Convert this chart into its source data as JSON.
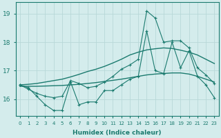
{
  "xlabel": "Humidex (Indice chaleur)",
  "x_values": [
    0,
    1,
    2,
    3,
    4,
    5,
    6,
    7,
    8,
    9,
    10,
    11,
    12,
    13,
    14,
    15,
    16,
    17,
    18,
    19,
    20,
    21,
    22,
    23
  ],
  "line_volatile": [
    16.5,
    16.4,
    16.1,
    15.8,
    15.6,
    15.6,
    16.6,
    15.8,
    15.9,
    15.9,
    16.3,
    16.3,
    16.5,
    16.7,
    16.8,
    18.4,
    17.0,
    16.9,
    18.0,
    17.1,
    17.7,
    16.8,
    16.5,
    16.05
  ],
  "line_upper": [
    16.5,
    16.35,
    16.2,
    16.1,
    16.05,
    16.1,
    16.65,
    16.55,
    16.4,
    16.45,
    16.6,
    16.8,
    17.05,
    17.2,
    17.4,
    19.1,
    18.85,
    18.0,
    18.05,
    18.05,
    17.8,
    17.1,
    16.85,
    16.55
  ],
  "line_trend_upper": [
    16.5,
    16.52,
    16.55,
    16.6,
    16.65,
    16.7,
    16.78,
    16.87,
    16.97,
    17.05,
    17.15,
    17.27,
    17.4,
    17.55,
    17.65,
    17.73,
    17.77,
    17.8,
    17.78,
    17.72,
    17.65,
    17.55,
    17.4,
    17.25
  ],
  "line_trend_lower": [
    16.45,
    16.45,
    16.45,
    16.46,
    16.47,
    16.48,
    16.5,
    16.52,
    16.55,
    16.58,
    16.62,
    16.66,
    16.7,
    16.75,
    16.8,
    16.85,
    16.88,
    16.9,
    16.92,
    16.92,
    16.88,
    16.8,
    16.7,
    16.6
  ],
  "color": "#1a7a6e",
  "bg_color": "#d4ecec",
  "grid_color": "#b8d8d8",
  "ylim": [
    15.4,
    19.4
  ],
  "yticks": [
    16,
    17,
    18,
    19
  ]
}
